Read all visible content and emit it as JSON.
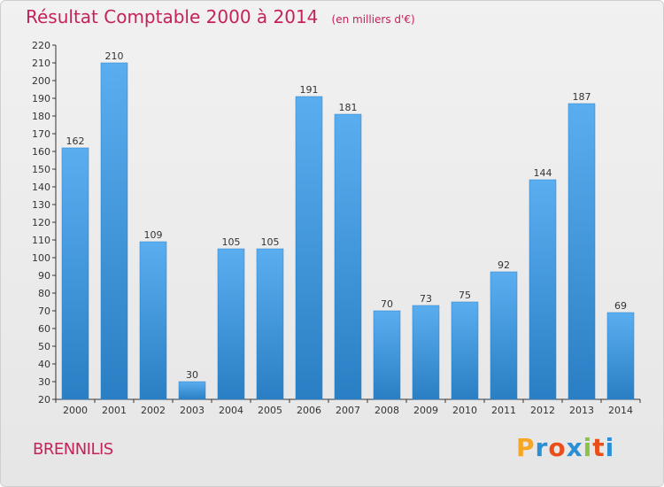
{
  "colors": {
    "title": "#c5225a",
    "bar_light": "#5aaef0",
    "bar_dark": "#2a7fc4"
  },
  "chart_data": {
    "type": "bar",
    "title": "Résultat Comptable 2000 à 2014",
    "subtitle": "(en milliers d'€)",
    "categories": [
      "2000",
      "2001",
      "2002",
      "2003",
      "2004",
      "2005",
      "2006",
      "2007",
      "2008",
      "2009",
      "2010",
      "2011",
      "2012",
      "2013",
      "2014"
    ],
    "values": [
      162,
      210,
      109,
      30,
      105,
      105,
      191,
      181,
      70,
      73,
      75,
      92,
      144,
      187,
      69
    ],
    "ylim": [
      20,
      220
    ],
    "ytick_step": 10,
    "grid": false,
    "xlabel": "",
    "ylabel": ""
  },
  "place": "BRENNILIS",
  "logo": {
    "letters": [
      "P",
      "r",
      "o",
      "x",
      "i",
      "t",
      "i"
    ],
    "colors": [
      "#f6a623",
      "#2b8fd6",
      "#e94e1b",
      "#2b8fd6",
      "#8bc34a",
      "#e94e1b",
      "#2b8fd6"
    ]
  }
}
